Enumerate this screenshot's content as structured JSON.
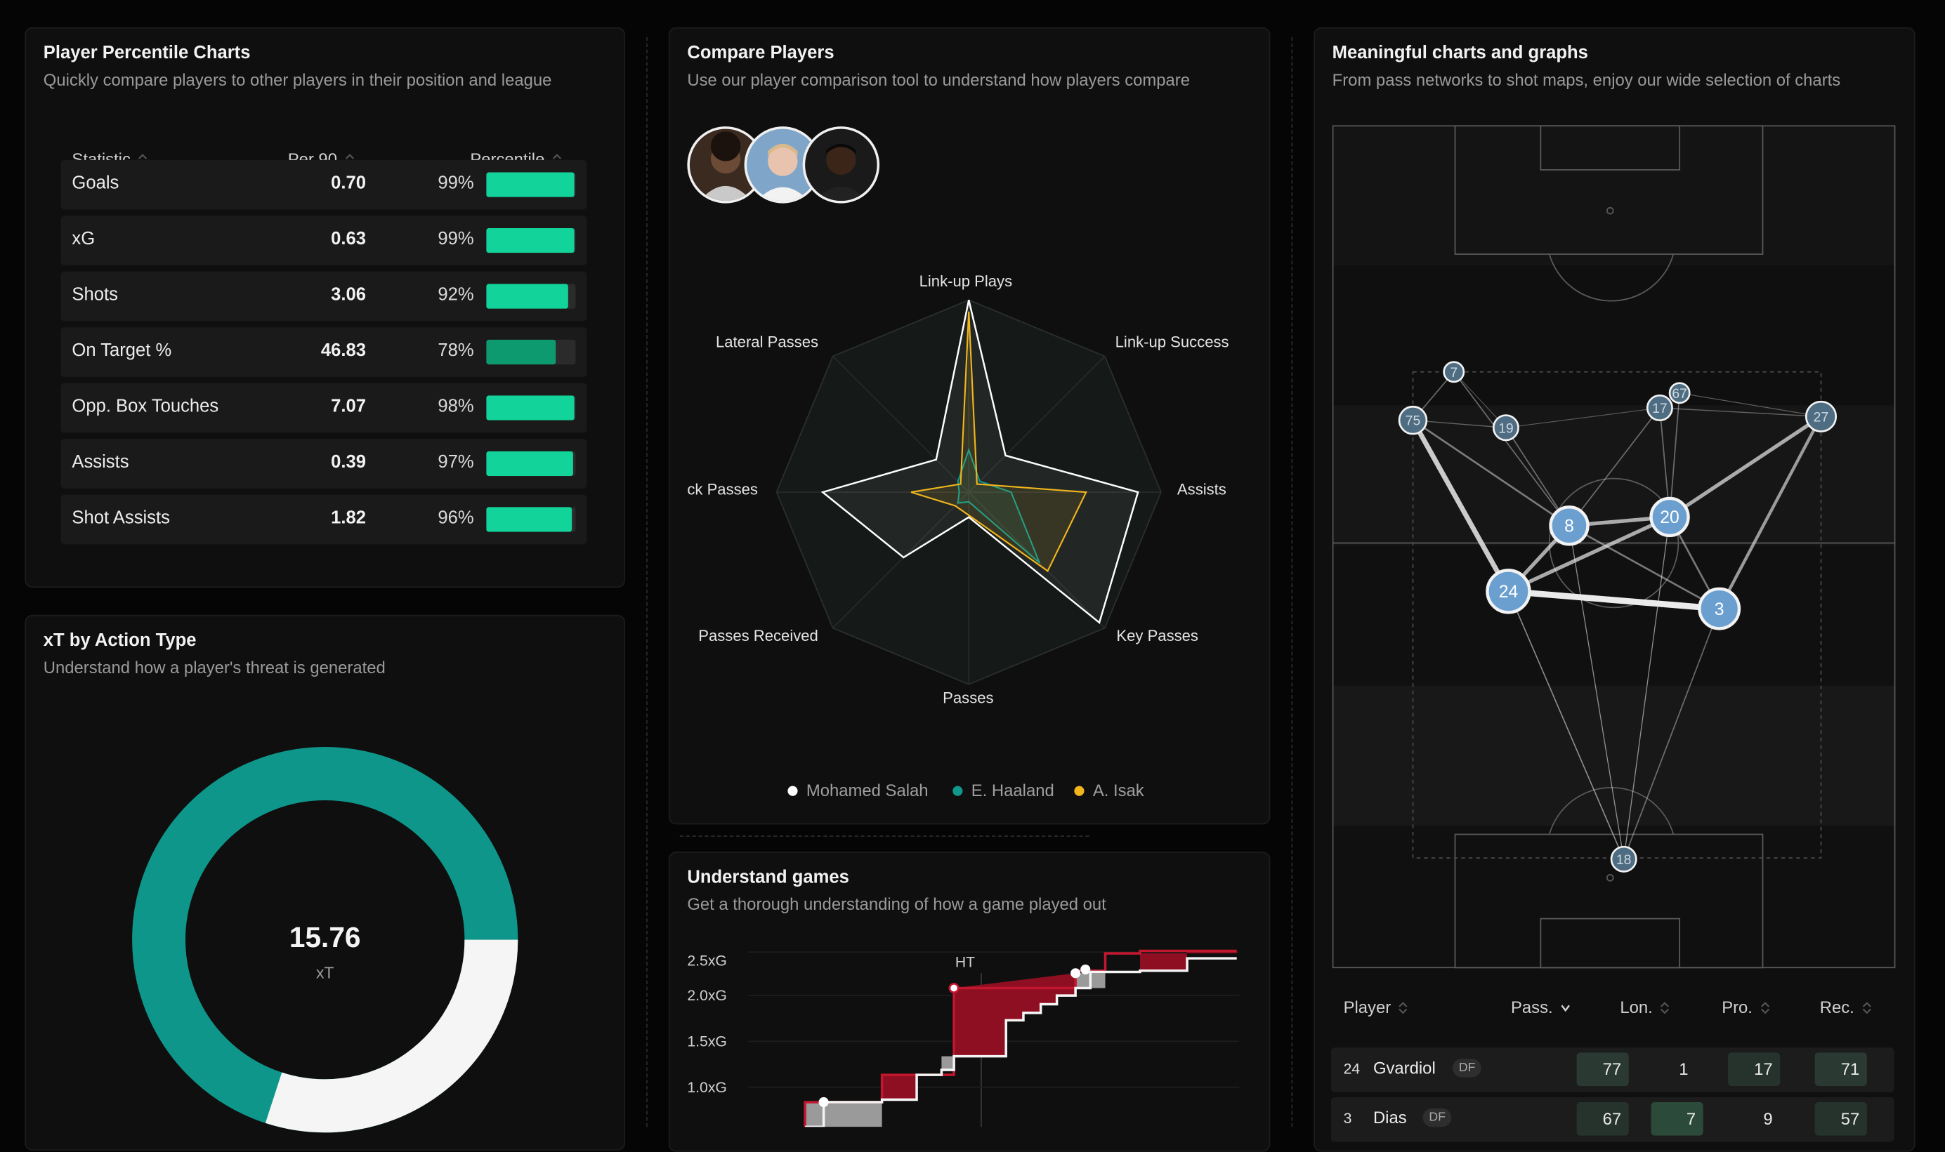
{
  "percentile_card": {
    "title": "Player Percentile Charts",
    "subtitle": "Quickly compare players to other players in their position and league",
    "columns": [
      "Statistic",
      "Per 90",
      "Percentile"
    ],
    "rows": [
      {
        "stat": "Goals",
        "per90": "0.70",
        "pct_label": "99%",
        "pct": 99
      },
      {
        "stat": "xG",
        "per90": "0.63",
        "pct_label": "99%",
        "pct": 99
      },
      {
        "stat": "Shots",
        "per90": "3.06",
        "pct_label": "92%",
        "pct": 92
      },
      {
        "stat": "On Target %",
        "per90": "46.83",
        "pct_label": "78%",
        "pct": 78
      },
      {
        "stat": "Opp. Box Touches",
        "per90": "7.07",
        "pct_label": "98%",
        "pct": 98
      },
      {
        "stat": "Assists",
        "per90": "0.39",
        "pct_label": "97%",
        "pct": 97
      },
      {
        "stat": "Shot Assists",
        "per90": "1.82",
        "pct_label": "96%",
        "pct": 96
      }
    ],
    "colors": {
      "bar_high": "#12d39a",
      "bar_mid": "#0d9a6f"
    }
  },
  "xt_card": {
    "title": "xT by Action Type",
    "subtitle": "Understand how a player's threat is generated",
    "total": "15.76",
    "unit": "xT",
    "segments": [
      {
        "label": "teal",
        "fraction": 0.7,
        "color": "#0f968a"
      },
      {
        "label": "white",
        "fraction": 0.3,
        "color": "#f5f5f5"
      }
    ]
  },
  "compare_card": {
    "title": "Compare Players",
    "subtitle": "Use our player comparison tool to understand how players compare",
    "radar_axes": [
      "Link-up Plays",
      "Link-up Success",
      "Assists",
      "Key Passes",
      "Passes",
      "Passes Received",
      "ck Passes",
      "Lateral Passes"
    ],
    "legend": [
      {
        "name": "Mohamed Salah",
        "color": "#ffffff"
      },
      {
        "name": "E. Haaland",
        "color": "#11988c"
      },
      {
        "name": "A. Isak",
        "color": "#f2b61d"
      }
    ]
  },
  "chart_data": [
    {
      "type": "radar",
      "categories": [
        "Link-up Plays",
        "Link-up Success",
        "Assists",
        "Key Passes",
        "Passes",
        "Passes Received",
        "ck Passes",
        "Lateral Passes"
      ],
      "series": [
        {
          "name": "Mohamed Salah",
          "values": [
            1.0,
            0.27,
            0.88,
            0.96,
            0.13,
            0.48,
            0.76,
            0.24
          ]
        },
        {
          "name": "E. Haaland",
          "values": [
            0.22,
            0.08,
            0.22,
            0.52,
            0.05,
            0.08,
            0.05,
            0.08
          ]
        },
        {
          "name": "A. Isak",
          "values": [
            0.94,
            0.06,
            0.61,
            0.58,
            0.12,
            0.1,
            0.3,
            0.06
          ]
        }
      ]
    },
    {
      "type": "line",
      "title": "",
      "yticks": [
        "2.5xG",
        "2.0xG",
        "1.5xG",
        "1.0xG"
      ],
      "marker_label": "HT",
      "ylim": [
        0.6,
        2.6
      ]
    }
  ],
  "games_card": {
    "title": "Understand games",
    "subtitle": "Get a thorough understanding of how a game played out"
  },
  "network_card": {
    "title": "Meaningful charts and graphs",
    "subtitle": "From pass networks to shot maps, enjoy our wide selection of charts",
    "nodes": [
      "7",
      "75",
      "19",
      "17",
      "67",
      "27",
      "8",
      "20",
      "24",
      "3",
      "18"
    ],
    "table_columns": [
      "Player",
      "Pass.",
      "Lon.",
      "Pro.",
      "Rec."
    ],
    "table_rows": [
      {
        "num": "24",
        "name": "Gvardiol",
        "pos": "DF",
        "pass": "77",
        "lon": "1",
        "pro": "17",
        "rec": "71"
      },
      {
        "num": "3",
        "name": "Dias",
        "pos": "DF",
        "pass": "67",
        "lon": "7",
        "pro": "9",
        "rec": "57"
      }
    ]
  }
}
